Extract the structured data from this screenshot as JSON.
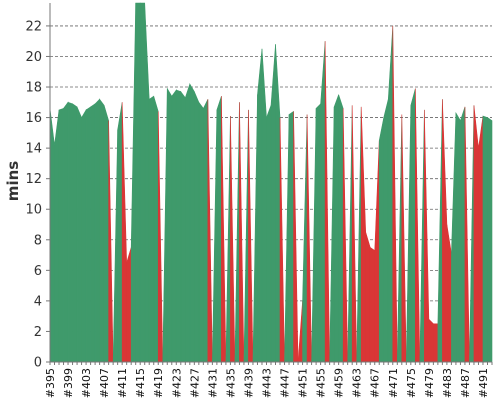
{
  "chart_data": {
    "type": "area",
    "xlabel": "",
    "ylabel": "mins",
    "ylim": [
      0,
      23.5
    ],
    "yticks": [
      0,
      2,
      4,
      6,
      8,
      10,
      12,
      14,
      16,
      18,
      20,
      22
    ],
    "grid": true,
    "x": [
      "#395",
      "#396",
      "#397",
      "#398",
      "#399",
      "#400",
      "#401",
      "#402",
      "#403",
      "#404",
      "#405",
      "#406",
      "#407",
      "#408",
      "#409",
      "#410",
      "#411",
      "#412",
      "#413",
      "#414",
      "#415",
      "#416",
      "#417",
      "#418",
      "#419",
      "#420",
      "#421",
      "#422",
      "#423",
      "#424",
      "#425",
      "#426",
      "#427",
      "#428",
      "#429",
      "#430",
      "#431",
      "#432",
      "#433",
      "#434",
      "#435",
      "#436",
      "#437",
      "#438",
      "#439",
      "#440",
      "#441",
      "#442",
      "#443",
      "#444",
      "#445",
      "#446",
      "#447",
      "#448",
      "#449",
      "#450",
      "#451",
      "#452",
      "#453",
      "#454",
      "#455",
      "#456",
      "#457",
      "#458",
      "#459",
      "#460",
      "#461",
      "#462",
      "#463",
      "#464",
      "#465",
      "#466",
      "#467",
      "#468",
      "#469",
      "#470",
      "#471",
      "#472",
      "#473",
      "#474",
      "#475",
      "#476",
      "#477",
      "#478",
      "#479",
      "#480",
      "#481",
      "#482",
      "#483",
      "#484",
      "#485",
      "#486",
      "#487",
      "#488",
      "#489",
      "#490",
      "#491",
      "#492",
      "#493"
    ],
    "xtick_labels": [
      "#395",
      "#399",
      "#403",
      "#407",
      "#411",
      "#415",
      "#419",
      "#423",
      "#427",
      "#431",
      "#435",
      "#439",
      "#443",
      "#447",
      "#451",
      "#455",
      "#459",
      "#463",
      "#467",
      "#471",
      "#475",
      "#479",
      "#483",
      "#487",
      "#491"
    ],
    "values": [
      16.6,
      14.2,
      16.5,
      16.6,
      17.0,
      16.9,
      16.7,
      16.0,
      16.5,
      16.7,
      16.9,
      17.2,
      16.8,
      15.8,
      0.0,
      15.2,
      17.0,
      6.5,
      7.5,
      23.5,
      23.5,
      23.5,
      17.2,
      17.4,
      16.4,
      0.0,
      17.9,
      17.4,
      17.8,
      17.7,
      17.3,
      18.2,
      17.7,
      17.0,
      16.6,
      17.2,
      0.0,
      16.5,
      17.4,
      0.0,
      16.1,
      0.0,
      17.0,
      0.0,
      16.5,
      0.0,
      17.5,
      20.5,
      16.0,
      16.8,
      20.8,
      16.0,
      0.0,
      16.2,
      16.4,
      0.0,
      4.0,
      16.2,
      0.0,
      16.6,
      16.9,
      21.0,
      0.0,
      16.7,
      17.5,
      16.6,
      0.0,
      16.8,
      0.0,
      16.7,
      8.5,
      7.5,
      7.3,
      14.5,
      16.0,
      17.2,
      22.0,
      0.0,
      16.2,
      0.0,
      16.8,
      17.9,
      0.0,
      16.5,
      2.8,
      2.5,
      2.5,
      17.2,
      9.0,
      7.1,
      16.3,
      15.8,
      16.7,
      0.0,
      16.8,
      14.0,
      16.1,
      16.0,
      15.8
    ],
    "status": [
      "success",
      "success",
      "success",
      "success",
      "success",
      "success",
      "success",
      "success",
      "success",
      "success",
      "success",
      "success",
      "success",
      "success",
      "failure",
      "success",
      "success",
      "failure",
      "failure",
      "success",
      "success",
      "success",
      "success",
      "success",
      "success",
      "failure",
      "success",
      "success",
      "success",
      "success",
      "success",
      "success",
      "success",
      "success",
      "success",
      "success",
      "failure",
      "success",
      "success",
      "failure",
      "success",
      "failure",
      "success",
      "failure",
      "success",
      "failure",
      "success",
      "success",
      "success",
      "success",
      "success",
      "success",
      "failure",
      "success",
      "success",
      "failure",
      "failure",
      "success",
      "failure",
      "success",
      "success",
      "success",
      "failure",
      "success",
      "success",
      "success",
      "failure",
      "success",
      "failure",
      "success",
      "failure",
      "failure",
      "failure",
      "failure",
      "success",
      "success",
      "success",
      "failure",
      "success",
      "failure",
      "success",
      "success",
      "failure",
      "success",
      "failure",
      "failure",
      "failure",
      "success",
      "failure",
      "failure",
      "success",
      "success",
      "success",
      "failure",
      "success",
      "failure",
      "failure",
      "success",
      "success"
    ],
    "colors": {
      "success": "#3f9a6b",
      "failure": "#d93636"
    }
  }
}
